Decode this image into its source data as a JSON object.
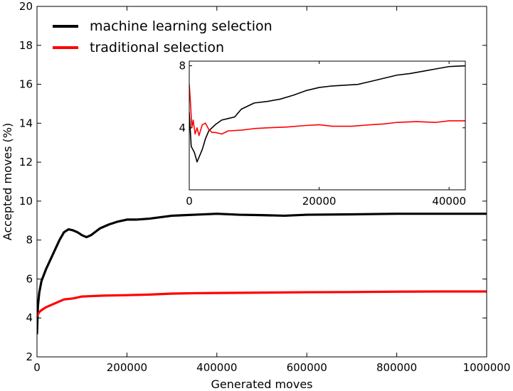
{
  "chart_data": [
    {
      "type": "line",
      "role": "main",
      "xlabel": "Generated moves",
      "ylabel": "Accepted moves (%)",
      "xlim": [
        0,
        1000000
      ],
      "ylim": [
        2,
        20
      ],
      "x_ticks": [
        0,
        200000,
        400000,
        600000,
        800000,
        1000000
      ],
      "x_tick_labels": [
        "0",
        "200000",
        "400000",
        "600000",
        "800000",
        "1000000"
      ],
      "y_ticks": [
        2,
        4,
        6,
        8,
        10,
        12,
        14,
        16,
        18,
        20
      ],
      "y_tick_labels": [
        "2",
        "4",
        "6",
        "8",
        "10",
        "12",
        "14",
        "16",
        "18",
        "20"
      ],
      "grid": false,
      "legend": "top-left",
      "series": [
        {
          "name": "machine learning selection",
          "color": "#000000",
          "points": [
            [
              0,
              3.2
            ],
            [
              2000,
              4.6
            ],
            [
              5000,
              5.3
            ],
            [
              10000,
              5.9
            ],
            [
              20000,
              6.5
            ],
            [
              30000,
              7.0
            ],
            [
              40000,
              7.5
            ],
            [
              50000,
              8.0
            ],
            [
              60000,
              8.4
            ],
            [
              70000,
              8.55
            ],
            [
              80000,
              8.5
            ],
            [
              90000,
              8.4
            ],
            [
              100000,
              8.25
            ],
            [
              110000,
              8.15
            ],
            [
              120000,
              8.25
            ],
            [
              140000,
              8.6
            ],
            [
              160000,
              8.8
            ],
            [
              180000,
              8.95
            ],
            [
              200000,
              9.05
            ],
            [
              220000,
              9.05
            ],
            [
              250000,
              9.1
            ],
            [
              300000,
              9.25
            ],
            [
              350000,
              9.3
            ],
            [
              400000,
              9.35
            ],
            [
              450000,
              9.3
            ],
            [
              500000,
              9.28
            ],
            [
              550000,
              9.25
            ],
            [
              600000,
              9.3
            ],
            [
              700000,
              9.32
            ],
            [
              800000,
              9.35
            ],
            [
              900000,
              9.35
            ],
            [
              1000000,
              9.35
            ]
          ]
        },
        {
          "name": "traditional selection",
          "color": "#ff0000",
          "points": [
            [
              0,
              4.1
            ],
            [
              5000,
              4.3
            ],
            [
              10000,
              4.4
            ],
            [
              20000,
              4.55
            ],
            [
              40000,
              4.75
            ],
            [
              60000,
              4.95
            ],
            [
              80000,
              5.0
            ],
            [
              100000,
              5.1
            ],
            [
              120000,
              5.12
            ],
            [
              150000,
              5.15
            ],
            [
              200000,
              5.17
            ],
            [
              250000,
              5.2
            ],
            [
              300000,
              5.25
            ],
            [
              350000,
              5.27
            ],
            [
              400000,
              5.28
            ],
            [
              500000,
              5.3
            ],
            [
              600000,
              5.32
            ],
            [
              700000,
              5.33
            ],
            [
              800000,
              5.35
            ],
            [
              900000,
              5.36
            ],
            [
              1000000,
              5.36
            ]
          ]
        }
      ]
    },
    {
      "type": "line",
      "role": "inset",
      "xlim": [
        0,
        42500
      ],
      "ylim": [
        0,
        8.3
      ],
      "x_ticks": [
        0,
        20000,
        40000
      ],
      "x_tick_labels": [
        "0",
        "20000",
        "40000"
      ],
      "y_ticks": [
        4,
        8
      ],
      "y_tick_labels": [
        "4",
        "8"
      ],
      "grid": false,
      "series": [
        {
          "color": "#000000",
          "points": [
            [
              0,
              5.0
            ],
            [
              300,
              2.8
            ],
            [
              800,
              2.4
            ],
            [
              1200,
              1.8
            ],
            [
              1600,
              2.2
            ],
            [
              2000,
              2.6
            ],
            [
              2500,
              3.3
            ],
            [
              3000,
              3.8
            ],
            [
              4000,
              4.2
            ],
            [
              5000,
              4.5
            ],
            [
              6000,
              4.6
            ],
            [
              7000,
              4.7
            ],
            [
              8000,
              5.2
            ],
            [
              10000,
              5.6
            ],
            [
              12000,
              5.7
            ],
            [
              14000,
              5.85
            ],
            [
              16000,
              6.1
            ],
            [
              18000,
              6.4
            ],
            [
              20000,
              6.6
            ],
            [
              22000,
              6.7
            ],
            [
              24000,
              6.75
            ],
            [
              26000,
              6.8
            ],
            [
              28000,
              7.0
            ],
            [
              30000,
              7.2
            ],
            [
              32000,
              7.4
            ],
            [
              34000,
              7.5
            ],
            [
              36000,
              7.65
            ],
            [
              38000,
              7.8
            ],
            [
              40000,
              7.95
            ],
            [
              42500,
              8.0
            ]
          ]
        },
        {
          "color": "#ff0000",
          "points": [
            [
              0,
              6.8
            ],
            [
              200,
              5.5
            ],
            [
              400,
              4.0
            ],
            [
              600,
              4.5
            ],
            [
              900,
              3.6
            ],
            [
              1200,
              4.0
            ],
            [
              1500,
              3.5
            ],
            [
              2000,
              4.2
            ],
            [
              2500,
              4.3
            ],
            [
              3000,
              3.9
            ],
            [
              3500,
              3.7
            ],
            [
              4000,
              3.7
            ],
            [
              5000,
              3.6
            ],
            [
              6000,
              3.8
            ],
            [
              8000,
              3.85
            ],
            [
              10000,
              3.95
            ],
            [
              12000,
              4.0
            ],
            [
              15000,
              4.05
            ],
            [
              18000,
              4.15
            ],
            [
              20000,
              4.2
            ],
            [
              22000,
              4.1
            ],
            [
              25000,
              4.1
            ],
            [
              28000,
              4.2
            ],
            [
              30000,
              4.25
            ],
            [
              32000,
              4.35
            ],
            [
              35000,
              4.4
            ],
            [
              38000,
              4.35
            ],
            [
              40000,
              4.45
            ],
            [
              42500,
              4.45
            ]
          ]
        }
      ]
    }
  ]
}
